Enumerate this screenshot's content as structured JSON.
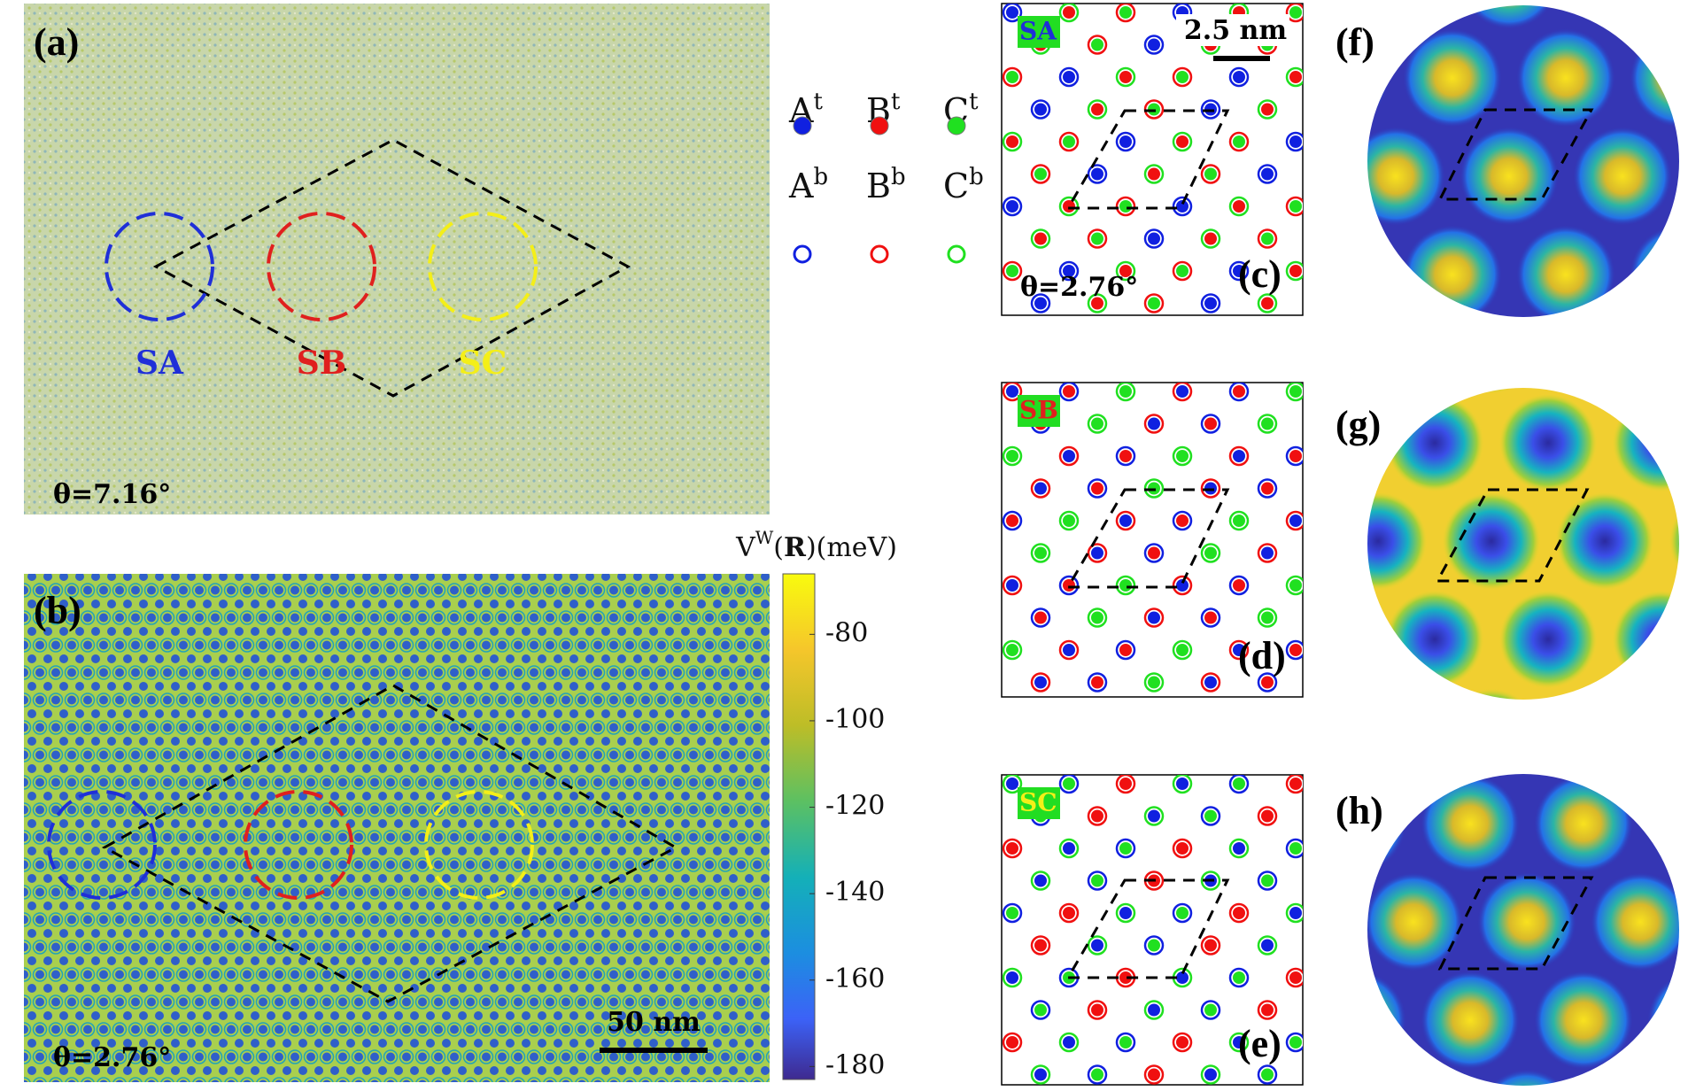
{
  "panel_a": {
    "label": "(a)",
    "theta": "θ=7.16°",
    "regions": [
      {
        "name": "SA",
        "color": "#1f2fd8"
      },
      {
        "name": "SB",
        "color": "#e0201e"
      },
      {
        "name": "SC",
        "color": "#f4ef18"
      }
    ]
  },
  "panel_b": {
    "label": "(b)",
    "theta": "θ=2.76°",
    "scale_bar": "50 nm"
  },
  "colorbar": {
    "title_parts": [
      "V",
      "W",
      "(",
      "R",
      ")(meV)"
    ],
    "lim": [
      -183,
      -66
    ],
    "ticks": [
      -80,
      -100,
      -120,
      -140,
      -160,
      -180
    ]
  },
  "legend": [
    {
      "letter": "A",
      "sup": "t",
      "color": "#1020e0",
      "style": "filled"
    },
    {
      "letter": "B",
      "sup": "t",
      "color": "#f01010",
      "style": "filled"
    },
    {
      "letter": "C",
      "sup": "t",
      "color": "#20e020",
      "style": "filled"
    },
    {
      "letter": "A",
      "sup": "b",
      "color": "#1020e0",
      "style": "ring"
    },
    {
      "letter": "B",
      "sup": "b",
      "color": "#f01010",
      "style": "ring"
    },
    {
      "letter": "C",
      "sup": "b",
      "color": "#20e020",
      "style": "ring"
    }
  ],
  "stacking_panels": [
    {
      "label": "(c)",
      "name": "SA",
      "theta": "θ=2.76°",
      "scale_bar": "2.5 nm"
    },
    {
      "label": "(d)",
      "name": "SB"
    },
    {
      "label": "(e)",
      "name": "SC"
    }
  ],
  "potential_panels": [
    {
      "label": "(f)"
    },
    {
      "label": "(g)"
    },
    {
      "label": "(h)"
    }
  ]
}
